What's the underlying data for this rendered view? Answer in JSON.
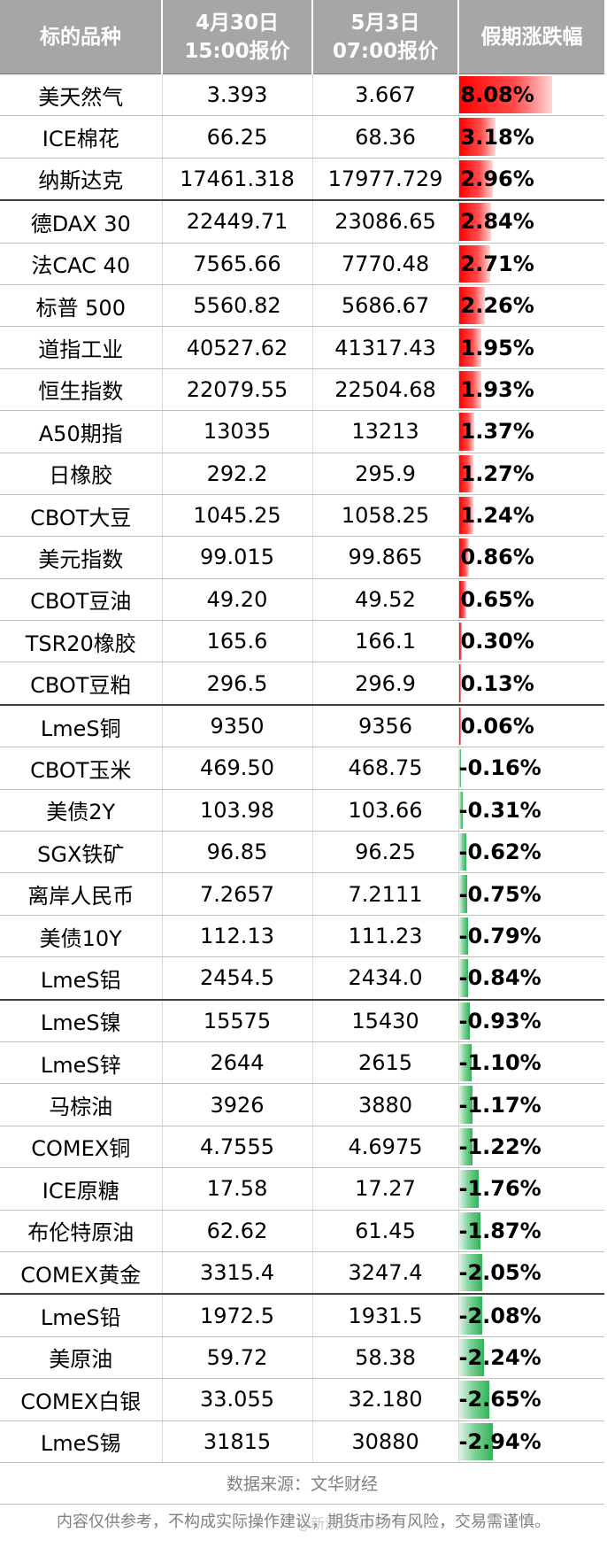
{
  "table": {
    "headers": [
      {
        "lines": [
          "标的品种"
        ]
      },
      {
        "lines": [
          "4月30日",
          "15:00报价"
        ]
      },
      {
        "lines": [
          "5月3日",
          "07:00报价"
        ]
      },
      {
        "lines": [
          "假期涨跌幅"
        ]
      }
    ],
    "rows": [
      {
        "name": "美天然气",
        "p1": "3.393",
        "p2": "3.667",
        "chg": "8.08%",
        "value": 8.08
      },
      {
        "name": "ICE棉花",
        "p1": "66.25",
        "p2": "68.36",
        "chg": "3.18%",
        "value": 3.18
      },
      {
        "name": "纳斯达克",
        "p1": "17461.318",
        "p2": "17977.729",
        "chg": "2.96%",
        "value": 2.96
      },
      {
        "name": "德DAX 30",
        "p1": "22449.71",
        "p2": "23086.65",
        "chg": "2.84%",
        "value": 2.84
      },
      {
        "name": "法CAC 40",
        "p1": "7565.66",
        "p2": "7770.48",
        "chg": "2.71%",
        "value": 2.71
      },
      {
        "name": "标普 500",
        "p1": "5560.82",
        "p2": "5686.67",
        "chg": "2.26%",
        "value": 2.26
      },
      {
        "name": "道指工业",
        "p1": "40527.62",
        "p2": "41317.43",
        "chg": "1.95%",
        "value": 1.95
      },
      {
        "name": "恒生指数",
        "p1": "22079.55",
        "p2": "22504.68",
        "chg": "1.93%",
        "value": 1.93
      },
      {
        "name": "A50期指",
        "p1": "13035",
        "p2": "13213",
        "chg": "1.37%",
        "value": 1.37
      },
      {
        "name": "日橡胶",
        "p1": "292.2",
        "p2": "295.9",
        "chg": "1.27%",
        "value": 1.27
      },
      {
        "name": "CBOT大豆",
        "p1": "1045.25",
        "p2": "1058.25",
        "chg": "1.24%",
        "value": 1.24
      },
      {
        "name": "美元指数",
        "p1": "99.015",
        "p2": "99.865",
        "chg": "0.86%",
        "value": 0.86
      },
      {
        "name": "CBOT豆油",
        "p1": "49.20",
        "p2": "49.52",
        "chg": "0.65%",
        "value": 0.65
      },
      {
        "name": "TSR20橡胶",
        "p1": "165.6",
        "p2": "166.1",
        "chg": "0.30%",
        "value": 0.3
      },
      {
        "name": "CBOT豆粕",
        "p1": "296.5",
        "p2": "296.9",
        "chg": "0.13%",
        "value": 0.13
      },
      {
        "name": "LmeS铜",
        "p1": "9350",
        "p2": "9356",
        "chg": "0.06%",
        "value": 0.06
      },
      {
        "name": "CBOT玉米",
        "p1": "469.50",
        "p2": "468.75",
        "chg": "-0.16%",
        "value": -0.16
      },
      {
        "name": "美债2Y",
        "p1": "103.98",
        "p2": "103.66",
        "chg": "-0.31%",
        "value": -0.31
      },
      {
        "name": "SGX铁矿",
        "p1": "96.85",
        "p2": "96.25",
        "chg": "-0.62%",
        "value": -0.62
      },
      {
        "name": "离岸人民币",
        "p1": "7.2657",
        "p2": "7.2111",
        "chg": "-0.75%",
        "value": -0.75
      },
      {
        "name": "美债10Y",
        "p1": "112.13",
        "p2": "111.23",
        "chg": "-0.79%",
        "value": -0.79
      },
      {
        "name": "LmeS铝",
        "p1": "2454.5",
        "p2": "2434.0",
        "chg": "-0.84%",
        "value": -0.84
      },
      {
        "name": "LmeS镍",
        "p1": "15575",
        "p2": "15430",
        "chg": "-0.93%",
        "value": -0.93
      },
      {
        "name": "LmeS锌",
        "p1": "2644",
        "p2": "2615",
        "chg": "-1.10%",
        "value": -1.1
      },
      {
        "name": "马棕油",
        "p1": "3926",
        "p2": "3880",
        "chg": "-1.17%",
        "value": -1.17
      },
      {
        "name": "COMEX铜",
        "p1": "4.7555",
        "p2": "4.6975",
        "chg": "-1.22%",
        "value": -1.22
      },
      {
        "name": "ICE原糖",
        "p1": "17.58",
        "p2": "17.27",
        "chg": "-1.76%",
        "value": -1.76
      },
      {
        "name": "布伦特原油",
        "p1": "62.62",
        "p2": "61.45",
        "chg": "-1.87%",
        "value": -1.87
      },
      {
        "name": "COMEX黄金",
        "p1": "3315.4",
        "p2": "3247.4",
        "chg": "-2.05%",
        "value": -2.05
      },
      {
        "name": "LmeS铅",
        "p1": "1972.5",
        "p2": "1931.5",
        "chg": "-2.08%",
        "value": -2.08
      },
      {
        "name": "美原油",
        "p1": "59.72",
        "p2": "58.38",
        "chg": "-2.24%",
        "value": -2.24
      },
      {
        "name": "COMEX白银",
        "p1": "33.055",
        "p2": "32.180",
        "chg": "-2.65%",
        "value": -2.65
      },
      {
        "name": "LmeS锡",
        "p1": "31815",
        "p2": "30880",
        "chg": "-2.94%",
        "value": -2.94
      }
    ],
    "source": "数据来源：文华财经"
  },
  "disclaimer": "内容仅供参考，不构成实际操作建议，期货市场有风险，交易需谨慎。",
  "watermark": "@新浪WNDE",
  "colors": {
    "header_bg": "#a6a6a6",
    "positive_bar": "#ff0000",
    "negative_bar": "#33b35a",
    "border_dark": "#404040"
  }
}
